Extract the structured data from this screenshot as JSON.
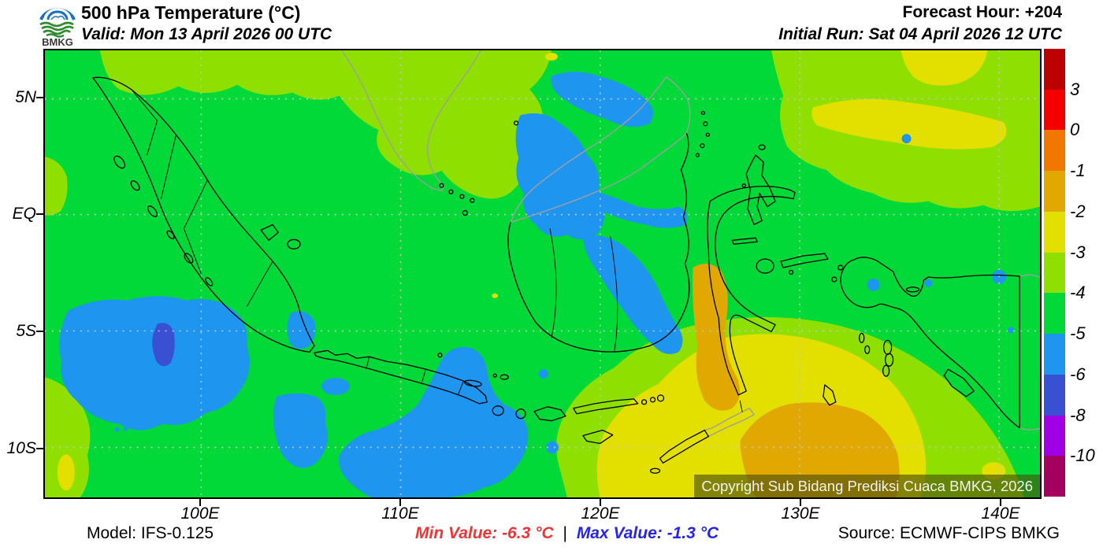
{
  "header": {
    "logo_text": "BMKG",
    "title": "500 hPa Temperature (°C)",
    "valid": "Valid: Mon 13 April 2026 00 UTC",
    "forecast_hour": "Forecast Hour: +204",
    "initial_run": "Initial Run: Sat 04 April 2026 12 UTC"
  },
  "axes": {
    "x_ticks": [
      "100E",
      "110E",
      "120E",
      "130E",
      "140E"
    ],
    "y_ticks": [
      "5N",
      "EQ",
      "5S",
      "10S"
    ]
  },
  "colorbar": {
    "tick_labels": [
      "3",
      "0",
      "-1",
      "-2",
      "-3",
      "-4",
      "-5",
      "-6",
      "-8",
      "-10"
    ],
    "colors": [
      "#BC0000",
      "#F50000",
      "#F07800",
      "#E0A800",
      "#E3E000",
      "#8FE000",
      "#00D938",
      "#1E96F0",
      "#3A50D2",
      "#A000E6",
      "#A30060"
    ]
  },
  "map": {
    "copyright": "Copyright Sub Bidang Prediksi Cuaca BMKG, 2026",
    "colors": {
      "green": "#00D938",
      "yellow_green": "#8FE000",
      "yellow": "#E3E000",
      "gold": "#E0A800",
      "blue": "#1E96F0",
      "royal_blue": "#3A50D2",
      "grid": "#C6C6C6",
      "coast": "#000000",
      "foreign_coast": "#9E9E9E"
    }
  },
  "footer": {
    "model": "Model: IFS-0.125",
    "min_value": "Min Value: -6.3 °C",
    "separator": "|",
    "max_value": "Max Value: -1.3 °C",
    "source": "Source: ECMWF-CIPS BMKG"
  }
}
